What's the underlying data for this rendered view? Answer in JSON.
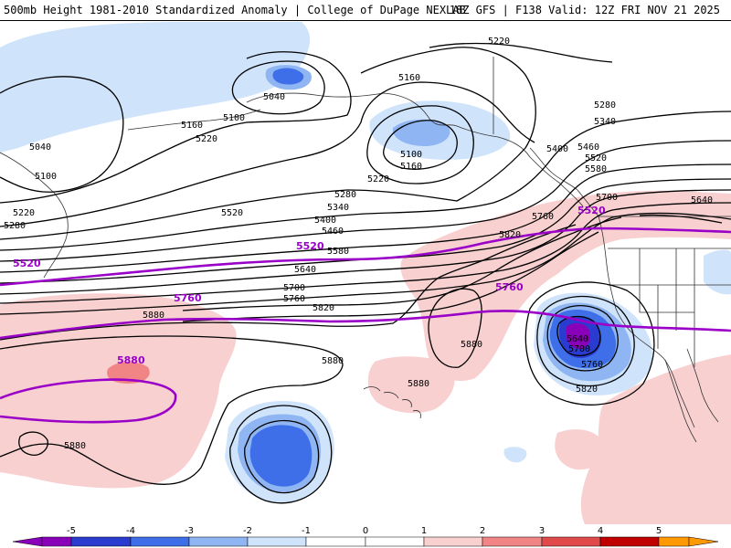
{
  "header": {
    "left_title": "500mb Height 1981-2010 Standardized Anomaly | College of DuPage NEXLAB",
    "right_title": "18Z GFS | F138 Valid: 12Z FRI NOV 21 2025"
  },
  "colors": {
    "contour": "#000000",
    "highlight_contour": "#9a00c8",
    "neg1": "#cfe3fb",
    "neg2": "#8fb6f3",
    "neg3": "#3e6fe8",
    "neg4": "#2a3bd0",
    "neg5": "#8a00b8",
    "pos1": "#f8d0d0",
    "pos2": "#f18585",
    "pos3": "#e04a4a",
    "pos4": "#c00000",
    "pos5": "#ff9900",
    "coast": "#333333"
  },
  "contour_labels": {
    "c5040": "5040",
    "c5100": "5100",
    "c5160": "5160",
    "c5220": "5220",
    "c5280": "5280",
    "c5340": "5340",
    "c5400": "5400",
    "c5460": "5460",
    "c5520": "5520",
    "c5580": "5580",
    "c5640": "5640",
    "c5700": "5700",
    "c5760": "5760",
    "c5820": "5820",
    "c5880": "5880"
  },
  "highlight_labels": {
    "h5520": "5520",
    "h5760": "5760",
    "h5880": "5880"
  },
  "colorbar": {
    "ticks": [
      "-5",
      "-4",
      "-3",
      "-2",
      "-1",
      "0",
      "1",
      "2",
      "3",
      "4",
      "5"
    ]
  }
}
